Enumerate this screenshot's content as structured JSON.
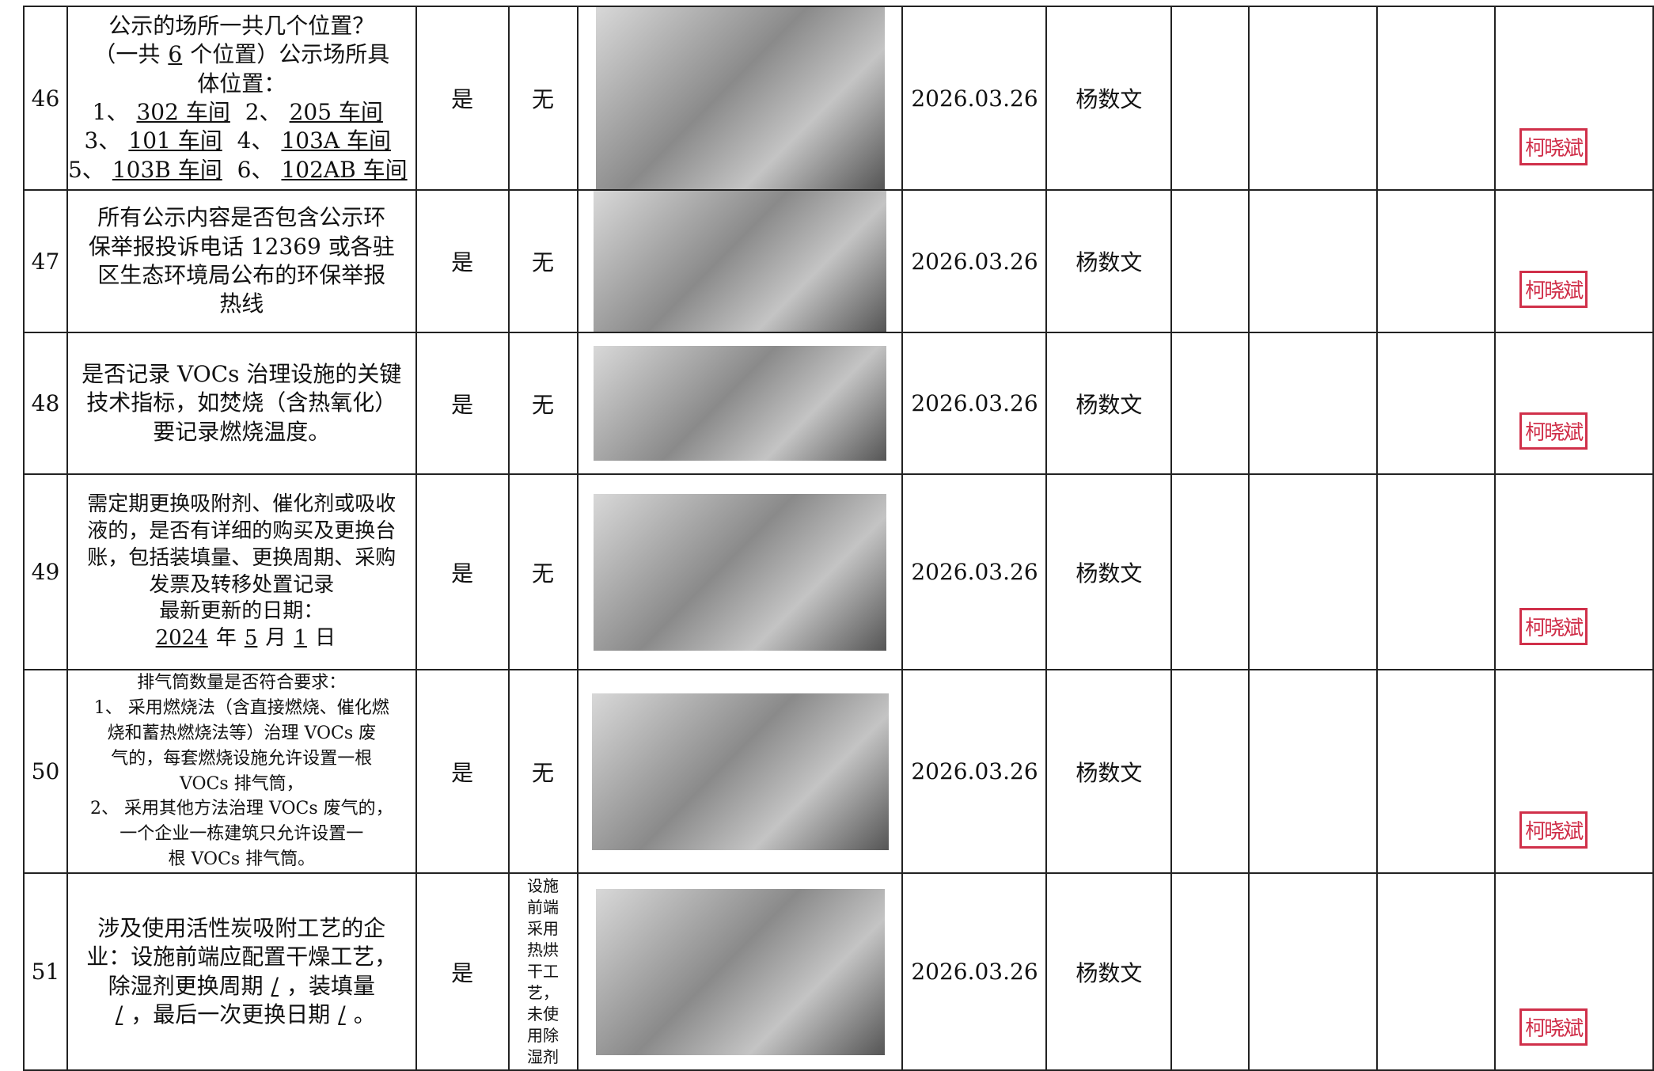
{
  "rows": [
    {
      "no": "46",
      "item": [
        "公示的场所一共几个位置？",
        [
          "（一共",
          {
            "u": "6"
          },
          "个位置）公示场所具"
        ],
        "体位置：",
        [
          "1、",
          {
            "u": "302 车间"
          },
          " 2、",
          {
            "u": "205 车间"
          }
        ],
        [
          "3、",
          {
            "u": "101 车间"
          },
          " 4、",
          {
            "u": "103A 车间"
          }
        ],
        [
          "5、",
          {
            "u": "103B 车间"
          },
          " 6、",
          {
            "u": "102AB 车间"
          }
        ]
      ],
      "result": "是",
      "remark": "无",
      "date": "2026.03.26",
      "inspector": "杨数文",
      "stamp": "柯晓斌"
    },
    {
      "no": "47",
      "item": [
        "所有公示内容是否包含公示环",
        "保举报投诉电话 12369 或各驻",
        "区生态环境局公布的环保举报",
        "热线"
      ],
      "result": "是",
      "remark": "无",
      "date": "2026.03.26",
      "inspector": "杨数文",
      "stamp": "柯晓斌"
    },
    {
      "no": "48",
      "item": [
        "是否记录 VOCs 治理设施的关键",
        "技术指标，如焚烧（含热氧化）",
        "要记录燃烧温度。"
      ],
      "result": "是",
      "remark": "无",
      "date": "2026.03.26",
      "inspector": "杨数文",
      "stamp": "柯晓斌"
    },
    {
      "no": "49",
      "item": [
        "需定期更换吸附剂、催化剂或吸收",
        "液的，是否有详细的购买及更换台",
        "账，包括装填量、更换周期、采购",
        "发票及转移处置记录",
        "最新更新的日期：",
        [
          {
            "u": "2024"
          },
          "年",
          {
            "u": "5"
          },
          "月",
          {
            "u": "1"
          },
          "日"
        ]
      ],
      "result": "是",
      "remark": "无",
      "date": "2026.03.26",
      "inspector": "杨数文",
      "stamp": "柯晓斌"
    },
    {
      "no": "50",
      "item": [
        "排气筒数量是否符合要求：",
        "1、 采用燃烧法（含直接燃烧、催化燃",
        "烧和蓄热燃烧法等）治理 VOCs 废",
        "气的，每套燃烧设施允许设置一根",
        "VOCs 排气筒，",
        "2、 采用其他方法治理 VOCs 废气的，",
        "一个企业一栋建筑只允许设置一",
        "根 VOCs 排气筒。"
      ],
      "result": "是",
      "remark": "无",
      "date": "2026.03.26",
      "inspector": "杨数文",
      "stamp": "柯晓斌"
    },
    {
      "no": "51",
      "item": [
        "涉及使用活性炭吸附工艺的企",
        "业：设施前端应配置干燥工艺，",
        [
          "除湿剂更换周期",
          {
            "u": "/"
          },
          "，装填量"
        ],
        [
          {
            "u": "/"
          },
          "，最后一次更换日期",
          {
            "u": "/"
          },
          "。"
        ]
      ],
      "result": "是",
      "remark": "设施前端采用热烘干工艺，未使用除湿剂",
      "date": "2026.03.26",
      "inspector": "杨数文",
      "stamp": "柯晓斌"
    }
  ]
}
